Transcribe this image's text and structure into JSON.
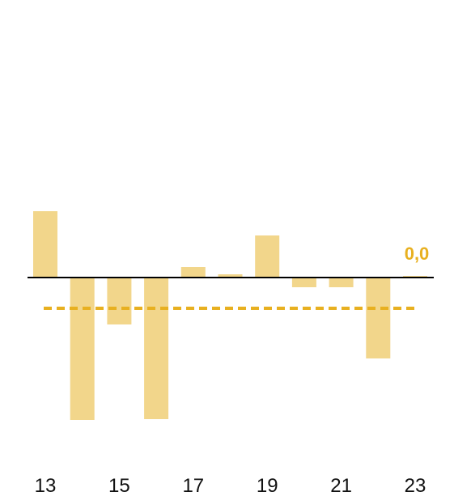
{
  "chart_data": {
    "type": "bar",
    "categories": [
      "13",
      "14",
      "15",
      "16",
      "17",
      "18",
      "19",
      "20",
      "21",
      "22",
      "23"
    ],
    "x_tick_labels": [
      "13",
      "15",
      "17",
      "19",
      "21",
      "23"
    ],
    "values": [
      8.2,
      -17.6,
      -5.8,
      -17.5,
      1.3,
      0.4,
      5.2,
      -1.2,
      -1.2,
      -10.0,
      0.0
    ],
    "reference_line": {
      "value": -3.8,
      "style": "dashed"
    },
    "last_value_label": "0,0",
    "title": "",
    "xlabel": "",
    "ylabel": "",
    "ylim": [
      -25,
      35
    ],
    "grid": false,
    "legend": "none",
    "colors": {
      "bar": "#f2d68b",
      "reference_line": "#e8b020",
      "label": "#e8b020",
      "zero_line": "#000000",
      "axis_text": "#111111"
    }
  }
}
